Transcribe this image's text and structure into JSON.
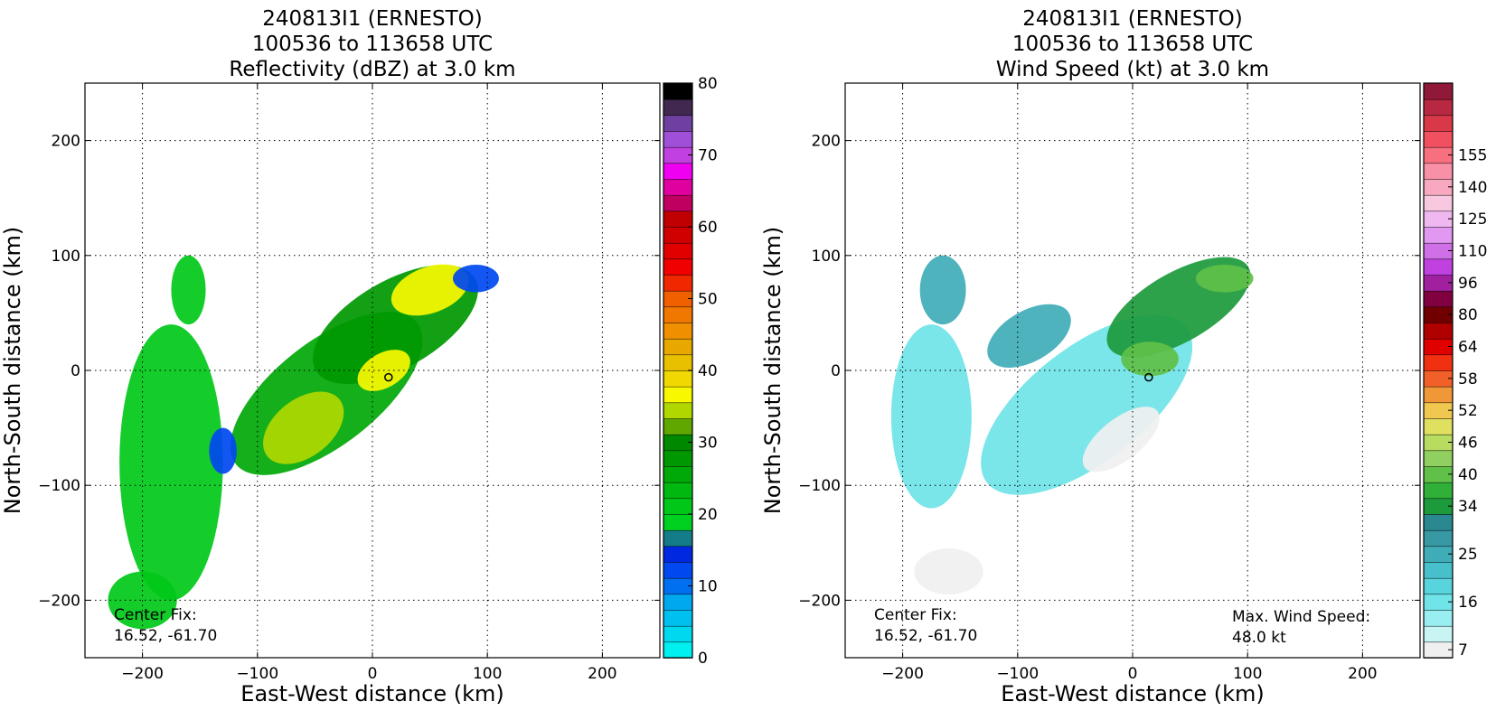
{
  "chart_data": [
    {
      "type": "heatmap",
      "title": [
        "240813I1 (ERNESTO)",
        "100536 to 113658 UTC",
        "Reflectivity (dBZ) at 3.0 km"
      ],
      "xlabel": "East-West distance (km)",
      "ylabel": "North-South distance (km)",
      "xlim": [
        -250,
        250
      ],
      "ylim": [
        -250,
        250
      ],
      "x_ticks": [
        -200,
        -100,
        0,
        100,
        200
      ],
      "y_ticks": [
        -200,
        -100,
        0,
        100,
        200
      ],
      "x_tick_labels": [
        "−200",
        "−100",
        "0",
        "100",
        "200"
      ],
      "y_tick_labels": [
        "−200",
        "−100",
        "0",
        "100",
        "200"
      ],
      "grid": true,
      "center_marker": [
        14,
        -6
      ],
      "annotation": [
        "Center Fix:",
        "16.52, -61.70"
      ],
      "colorbar": {
        "min": 0,
        "max": 80,
        "tick_values": [
          0,
          10,
          20,
          30,
          40,
          50,
          60,
          70,
          80
        ],
        "tick_labels": [
          "0",
          "10",
          "20",
          "30",
          "40",
          "50",
          "60",
          "70",
          "80"
        ],
        "colors": [
          "#00f0f0",
          "#00d8f0",
          "#00c0f0",
          "#00a8f0",
          "#0070f0",
          "#0048f0",
          "#0028e0",
          "#147c88",
          "#00d020",
          "#00c818",
          "#00b810",
          "#00a808",
          "#009800",
          "#008800",
          "#60a800",
          "#b0d800",
          "#f8f800",
          "#f0d800",
          "#e8c000",
          "#e8a800",
          "#f09000",
          "#f07800",
          "#f06000",
          "#f02800",
          "#f00000",
          "#e00000",
          "#d00000",
          "#c00000",
          "#c00060",
          "#e000a0",
          "#f000f0",
          "#c040e0",
          "#a050d8",
          "#7040a0",
          "#402850",
          "#000000"
        ]
      },
      "echo_regions": [
        {
          "center": [
            -40,
            -20
          ],
          "rx": 100,
          "ry": 45,
          "rotation_deg": -38,
          "value": 25
        },
        {
          "center": [
            20,
            40
          ],
          "rx": 80,
          "ry": 38,
          "rotation_deg": -30,
          "value": 27
        },
        {
          "center": [
            -175,
            -80
          ],
          "rx": 45,
          "ry": 120,
          "rotation_deg": 0,
          "value": 22
        },
        {
          "center": [
            -60,
            -50
          ],
          "rx": 40,
          "ry": 25,
          "rotation_deg": -38,
          "value": 35
        },
        {
          "center": [
            10,
            0
          ],
          "rx": 25,
          "ry": 15,
          "rotation_deg": -30,
          "value": 36
        },
        {
          "center": [
            50,
            70
          ],
          "rx": 35,
          "ry": 20,
          "rotation_deg": -20,
          "value": 37
        },
        {
          "center": [
            90,
            80
          ],
          "rx": 20,
          "ry": 12,
          "rotation_deg": 0,
          "value": 12
        },
        {
          "center": [
            -160,
            70
          ],
          "rx": 15,
          "ry": 30,
          "rotation_deg": 0,
          "value": 22
        },
        {
          "center": [
            -200,
            -200
          ],
          "rx": 30,
          "ry": 25,
          "rotation_deg": 0,
          "value": 22
        },
        {
          "center": [
            -130,
            -70
          ],
          "rx": 12,
          "ry": 20,
          "rotation_deg": 0,
          "value": 12
        }
      ]
    },
    {
      "type": "heatmap",
      "title": [
        "240813I1 (ERNESTO)",
        "100536 to 113658 UTC",
        "Wind Speed (kt) at 3.0 km"
      ],
      "xlabel": "East-West distance (km)",
      "ylabel": "North-South distance (km)",
      "xlim": [
        -250,
        250
      ],
      "ylim": [
        -250,
        250
      ],
      "x_ticks": [
        -200,
        -100,
        0,
        100,
        200
      ],
      "y_ticks": [
        -200,
        -100,
        0,
        100,
        200
      ],
      "x_tick_labels": [
        "−200",
        "−100",
        "0",
        "100",
        "200"
      ],
      "y_tick_labels": [
        "−200",
        "−100",
        "0",
        "100",
        "200"
      ],
      "grid": true,
      "center_marker": [
        14,
        -6
      ],
      "annotation": [
        "Center Fix:",
        "16.52, -61.70"
      ],
      "annotation2": [
        "Max. Wind Speed:",
        "48.0 kt"
      ],
      "colorbar": {
        "tick_labels": [
          "7",
          "16",
          "25",
          "34",
          "40",
          "46",
          "52",
          "58",
          "64",
          "80",
          "96",
          "110",
          "125",
          "140",
          "155"
        ],
        "tick_bins": [
          0,
          3,
          6,
          9,
          11,
          13,
          15,
          17,
          19,
          21,
          23,
          25,
          27,
          29,
          31
        ],
        "colors": [
          "#f0f0f0",
          "#c8f4f4",
          "#98eef0",
          "#70e4e8",
          "#58d4dc",
          "#48c0cc",
          "#40acb8",
          "#3898a4",
          "#2c8890",
          "#1c9a3c",
          "#30b038",
          "#60c048",
          "#90d060",
          "#b8dc60",
          "#e0e060",
          "#f0c850",
          "#f09838",
          "#f06028",
          "#f03010",
          "#e00000",
          "#b00000",
          "#700000",
          "#800040",
          "#a020a0",
          "#c040e0",
          "#d070e8",
          "#e098f0",
          "#f0b8f0",
          "#f8c8e0",
          "#f8a8c0",
          "#f890a8",
          "#f87080",
          "#f05060",
          "#d83848",
          "#b82840",
          "#901838"
        ]
      },
      "echo_regions": [
        {
          "center": [
            -40,
            -30
          ],
          "rx": 110,
          "ry": 50,
          "rotation_deg": -38,
          "value": 18
        },
        {
          "center": [
            -90,
            30
          ],
          "rx": 40,
          "ry": 22,
          "rotation_deg": -30,
          "value": 28
        },
        {
          "center": [
            40,
            55
          ],
          "rx": 70,
          "ry": 30,
          "rotation_deg": -30,
          "value": 38
        },
        {
          "center": [
            -165,
            70
          ],
          "rx": 20,
          "ry": 30,
          "rotation_deg": 0,
          "value": 26
        },
        {
          "center": [
            -175,
            -40
          ],
          "rx": 35,
          "ry": 80,
          "rotation_deg": 0,
          "value": 16
        },
        {
          "center": [
            -160,
            -175
          ],
          "rx": 30,
          "ry": 20,
          "rotation_deg": 0,
          "value": 7
        },
        {
          "center": [
            80,
            80
          ],
          "rx": 25,
          "ry": 12,
          "rotation_deg": 0,
          "value": 42
        },
        {
          "center": [
            -10,
            -60
          ],
          "rx": 40,
          "ry": 18,
          "rotation_deg": -38,
          "value": 9
        },
        {
          "center": [
            15,
            10
          ],
          "rx": 25,
          "ry": 15,
          "rotation_deg": 0,
          "value": 44
        }
      ]
    }
  ]
}
